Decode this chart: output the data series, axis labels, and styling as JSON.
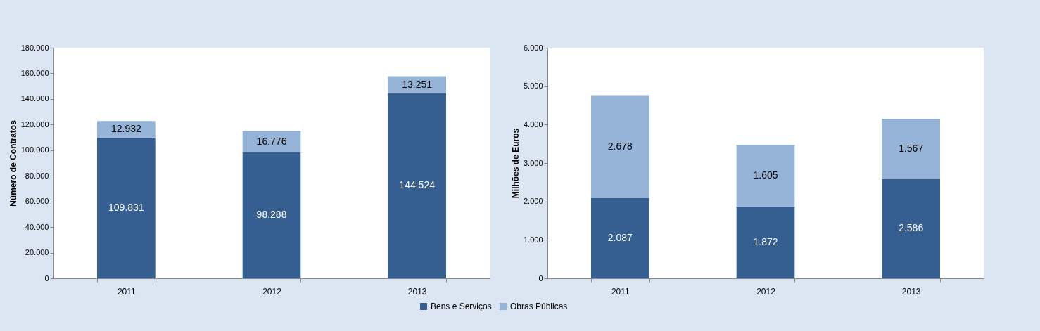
{
  "chart_data": [
    {
      "type": "bar",
      "stacked": true,
      "ylabel": "Número de Contratos",
      "categories": [
        "2011",
        "2012",
        "2013"
      ],
      "legend": "bottom",
      "ylim": [
        0,
        180000
      ],
      "yticks": [
        {
          "value": 0,
          "label": "0"
        },
        {
          "value": 20000,
          "label": "20.000"
        },
        {
          "value": 40000,
          "label": "40.000"
        },
        {
          "value": 60000,
          "label": "60.000"
        },
        {
          "value": 80000,
          "label": "80.000"
        },
        {
          "value": 100000,
          "label": "100.000"
        },
        {
          "value": 120000,
          "label": "120.000"
        },
        {
          "value": 140000,
          "label": "140.000"
        },
        {
          "value": 160000,
          "label": "160.000"
        },
        {
          "value": 180000,
          "label": "180.000"
        }
      ],
      "series": [
        {
          "name": "Bens e Serviços",
          "color": "#355f91",
          "values": [
            109831,
            98288,
            144524
          ],
          "value_labels": [
            "109.831",
            "98.288",
            "144.524"
          ]
        },
        {
          "name": "Obras Públicas",
          "color": "#95b3d7",
          "values": [
            12932,
            16776,
            13251
          ],
          "value_labels": [
            "12.932",
            "16.776",
            "13.251"
          ]
        }
      ]
    },
    {
      "type": "bar",
      "stacked": true,
      "ylabel": "Milhões de Euros",
      "categories": [
        "2011",
        "2012",
        "2013"
      ],
      "legend": "bottom",
      "ylim": [
        0,
        6000
      ],
      "yticks": [
        {
          "value": 0,
          "label": "0"
        },
        {
          "value": 1000,
          "label": "1.000"
        },
        {
          "value": 2000,
          "label": "2.000"
        },
        {
          "value": 3000,
          "label": "3.000"
        },
        {
          "value": 4000,
          "label": "4.000"
        },
        {
          "value": 5000,
          "label": "5.000"
        },
        {
          "value": 6000,
          "label": "6.000"
        }
      ],
      "series": [
        {
          "name": "Bens e Serviços",
          "color": "#355f91",
          "values": [
            2087,
            1872,
            2586
          ],
          "value_labels": [
            "2.087",
            "1.872",
            "2.586"
          ]
        },
        {
          "name": "Obras Públicas",
          "color": "#95b3d7",
          "values": [
            2678,
            1605,
            1567
          ],
          "value_labels": [
            "2.678",
            "1.605",
            "1.567"
          ]
        }
      ]
    }
  ]
}
